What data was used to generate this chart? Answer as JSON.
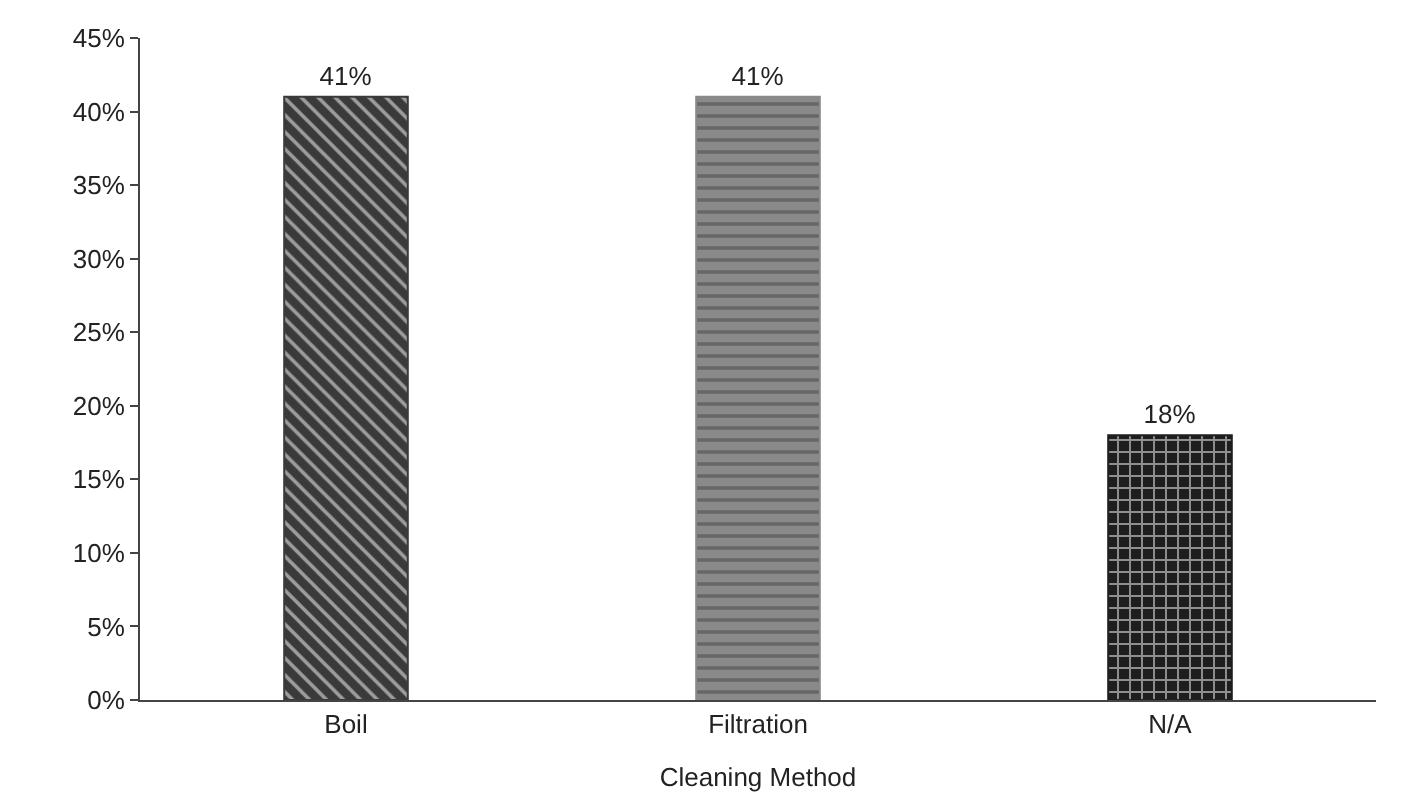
{
  "chart_data": {
    "type": "bar",
    "xlabel": "Cleaning Method",
    "categories": [
      "Boil",
      "Filtration",
      "N/A"
    ],
    "values": [
      41,
      41,
      18
    ],
    "value_labels": [
      "41%",
      "41%",
      "18%"
    ],
    "colors": [
      "#3a3a3a",
      "#8a8a8a",
      "#1e1e1e"
    ],
    "ylim": [
      0,
      45
    ],
    "yticks": [
      {
        "value": 0,
        "label": "0%"
      },
      {
        "value": 5,
        "label": "5%"
      },
      {
        "value": 10,
        "label": "10%"
      },
      {
        "value": 15,
        "label": "15%"
      },
      {
        "value": 20,
        "label": "20%"
      },
      {
        "value": 25,
        "label": "25%"
      },
      {
        "value": 30,
        "label": "30%"
      },
      {
        "value": 35,
        "label": "35%"
      },
      {
        "value": 40,
        "label": "40%"
      },
      {
        "value": 45,
        "label": "45%"
      }
    ]
  }
}
